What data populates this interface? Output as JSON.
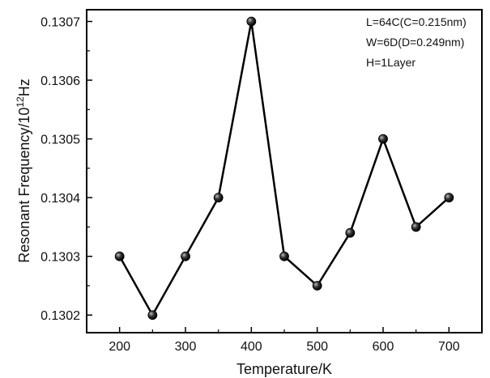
{
  "chart_data": {
    "type": "line",
    "title": "",
    "xlabel": "Temperature/K",
    "ylabel_parts": {
      "main": "Resonant Frequency/10",
      "sup": "12",
      "unit": "Hz"
    },
    "x": [
      200,
      250,
      300,
      350,
      400,
      450,
      500,
      550,
      600,
      650,
      700
    ],
    "series": [
      {
        "values": [
          0.1303,
          0.1302,
          0.1303,
          0.1304,
          0.1307,
          0.1303,
          0.13025,
          0.13034,
          0.1305,
          0.13035,
          0.1304
        ]
      }
    ],
    "xlim": [
      150,
      750
    ],
    "ylim": [
      0.13017,
      0.13072
    ],
    "xticks": [
      200,
      300,
      400,
      500,
      600,
      700
    ],
    "xtick_labels": [
      "200",
      "300",
      "400",
      "500",
      "600",
      "700"
    ],
    "yticks": [
      0.1302,
      0.1303,
      0.1304,
      0.1305,
      0.1306,
      0.1307
    ],
    "ytick_labels": [
      "0.1302",
      "0.1303",
      "0.1304",
      "0.1305",
      "0.1306",
      "0.1307"
    ],
    "annotations": [
      "L=64C(C=0.215nm)",
      "W=6D(D=0.249nm)",
      "H=1Layer"
    ],
    "grid": false,
    "legend": "none"
  },
  "colors": {
    "line": "#000000",
    "axis": "#000000",
    "marker": "#1a1a1a"
  }
}
